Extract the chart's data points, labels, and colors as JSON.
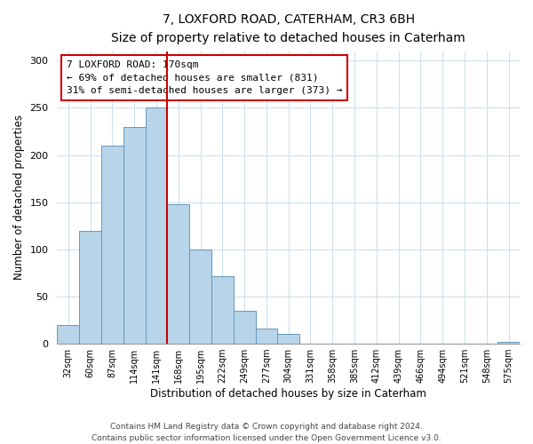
{
  "title": "7, LOXFORD ROAD, CATERHAM, CR3 6BH",
  "subtitle": "Size of property relative to detached houses in Caterham",
  "xlabel": "Distribution of detached houses by size in Caterham",
  "ylabel": "Number of detached properties",
  "bar_labels": [
    "32sqm",
    "60sqm",
    "87sqm",
    "114sqm",
    "141sqm",
    "168sqm",
    "195sqm",
    "222sqm",
    "249sqm",
    "277sqm",
    "304sqm",
    "331sqm",
    "358sqm",
    "385sqm",
    "412sqm",
    "439sqm",
    "466sqm",
    "494sqm",
    "521sqm",
    "548sqm",
    "575sqm"
  ],
  "bar_values": [
    20,
    120,
    210,
    230,
    250,
    148,
    100,
    72,
    35,
    16,
    10,
    0,
    0,
    0,
    0,
    0,
    0,
    0,
    0,
    0,
    2
  ],
  "bar_color": "#b8d4e8",
  "bar_edge_color": "#6699bb",
  "vline_color": "#cc0000",
  "annotation_title": "7 LOXFORD ROAD: 170sqm",
  "annotation_line1": "← 69% of detached houses are smaller (831)",
  "annotation_line2": "31% of semi-detached houses are larger (373) →",
  "annotation_box_color": "#ffffff",
  "annotation_box_edge": "#cc0000",
  "ylim": [
    0,
    310
  ],
  "yticks": [
    0,
    50,
    100,
    150,
    200,
    250,
    300
  ],
  "footer1": "Contains HM Land Registry data © Crown copyright and database right 2024.",
  "footer2": "Contains public sector information licensed under the Open Government Licence v3.0."
}
